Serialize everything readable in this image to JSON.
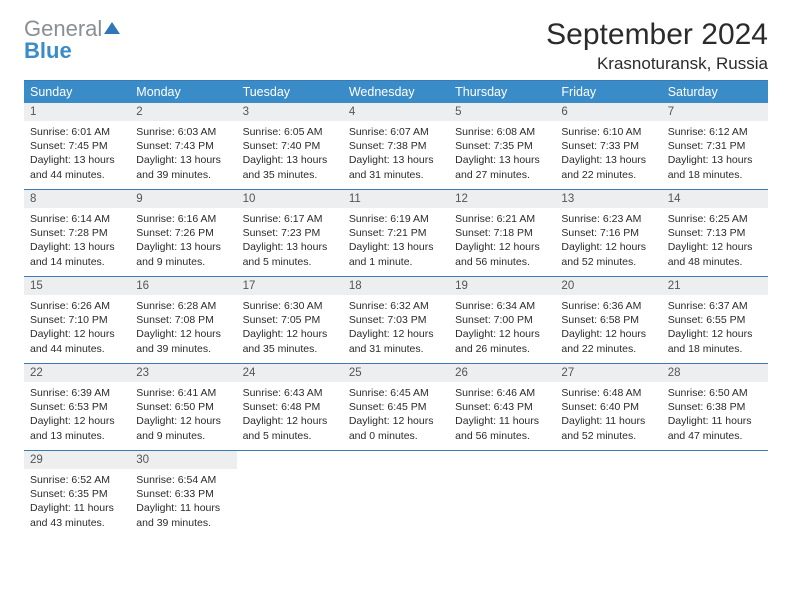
{
  "brand": {
    "name1": "General",
    "name2": "Blue",
    "logo_color": "#2f78b8"
  },
  "title": "September 2024",
  "location": "Krasnoturansk, Russia",
  "colors": {
    "header_bg": "#3a8cc9",
    "header_text": "#ffffff",
    "daynum_bg": "#eceeef",
    "border": "#3a7bb5",
    "body_text": "#2b2b2b"
  },
  "dow": [
    "Sunday",
    "Monday",
    "Tuesday",
    "Wednesday",
    "Thursday",
    "Friday",
    "Saturday"
  ],
  "weeks": [
    [
      {
        "n": "1",
        "sr": "6:01 AM",
        "ss": "7:45 PM",
        "dl": "13 hours and 44 minutes."
      },
      {
        "n": "2",
        "sr": "6:03 AM",
        "ss": "7:43 PM",
        "dl": "13 hours and 39 minutes."
      },
      {
        "n": "3",
        "sr": "6:05 AM",
        "ss": "7:40 PM",
        "dl": "13 hours and 35 minutes."
      },
      {
        "n": "4",
        "sr": "6:07 AM",
        "ss": "7:38 PM",
        "dl": "13 hours and 31 minutes."
      },
      {
        "n": "5",
        "sr": "6:08 AM",
        "ss": "7:35 PM",
        "dl": "13 hours and 27 minutes."
      },
      {
        "n": "6",
        "sr": "6:10 AM",
        "ss": "7:33 PM",
        "dl": "13 hours and 22 minutes."
      },
      {
        "n": "7",
        "sr": "6:12 AM",
        "ss": "7:31 PM",
        "dl": "13 hours and 18 minutes."
      }
    ],
    [
      {
        "n": "8",
        "sr": "6:14 AM",
        "ss": "7:28 PM",
        "dl": "13 hours and 14 minutes."
      },
      {
        "n": "9",
        "sr": "6:16 AM",
        "ss": "7:26 PM",
        "dl": "13 hours and 9 minutes."
      },
      {
        "n": "10",
        "sr": "6:17 AM",
        "ss": "7:23 PM",
        "dl": "13 hours and 5 minutes."
      },
      {
        "n": "11",
        "sr": "6:19 AM",
        "ss": "7:21 PM",
        "dl": "13 hours and 1 minute."
      },
      {
        "n": "12",
        "sr": "6:21 AM",
        "ss": "7:18 PM",
        "dl": "12 hours and 56 minutes."
      },
      {
        "n": "13",
        "sr": "6:23 AM",
        "ss": "7:16 PM",
        "dl": "12 hours and 52 minutes."
      },
      {
        "n": "14",
        "sr": "6:25 AM",
        "ss": "7:13 PM",
        "dl": "12 hours and 48 minutes."
      }
    ],
    [
      {
        "n": "15",
        "sr": "6:26 AM",
        "ss": "7:10 PM",
        "dl": "12 hours and 44 minutes."
      },
      {
        "n": "16",
        "sr": "6:28 AM",
        "ss": "7:08 PM",
        "dl": "12 hours and 39 minutes."
      },
      {
        "n": "17",
        "sr": "6:30 AM",
        "ss": "7:05 PM",
        "dl": "12 hours and 35 minutes."
      },
      {
        "n": "18",
        "sr": "6:32 AM",
        "ss": "7:03 PM",
        "dl": "12 hours and 31 minutes."
      },
      {
        "n": "19",
        "sr": "6:34 AM",
        "ss": "7:00 PM",
        "dl": "12 hours and 26 minutes."
      },
      {
        "n": "20",
        "sr": "6:36 AM",
        "ss": "6:58 PM",
        "dl": "12 hours and 22 minutes."
      },
      {
        "n": "21",
        "sr": "6:37 AM",
        "ss": "6:55 PM",
        "dl": "12 hours and 18 minutes."
      }
    ],
    [
      {
        "n": "22",
        "sr": "6:39 AM",
        "ss": "6:53 PM",
        "dl": "12 hours and 13 minutes."
      },
      {
        "n": "23",
        "sr": "6:41 AM",
        "ss": "6:50 PM",
        "dl": "12 hours and 9 minutes."
      },
      {
        "n": "24",
        "sr": "6:43 AM",
        "ss": "6:48 PM",
        "dl": "12 hours and 5 minutes."
      },
      {
        "n": "25",
        "sr": "6:45 AM",
        "ss": "6:45 PM",
        "dl": "12 hours and 0 minutes."
      },
      {
        "n": "26",
        "sr": "6:46 AM",
        "ss": "6:43 PM",
        "dl": "11 hours and 56 minutes."
      },
      {
        "n": "27",
        "sr": "6:48 AM",
        "ss": "6:40 PM",
        "dl": "11 hours and 52 minutes."
      },
      {
        "n": "28",
        "sr": "6:50 AM",
        "ss": "6:38 PM",
        "dl": "11 hours and 47 minutes."
      }
    ],
    [
      {
        "n": "29",
        "sr": "6:52 AM",
        "ss": "6:35 PM",
        "dl": "11 hours and 43 minutes."
      },
      {
        "n": "30",
        "sr": "6:54 AM",
        "ss": "6:33 PM",
        "dl": "11 hours and 39 minutes."
      },
      null,
      null,
      null,
      null,
      null
    ]
  ],
  "labels": {
    "sunrise": "Sunrise:",
    "sunset": "Sunset:",
    "daylight": "Daylight:"
  }
}
